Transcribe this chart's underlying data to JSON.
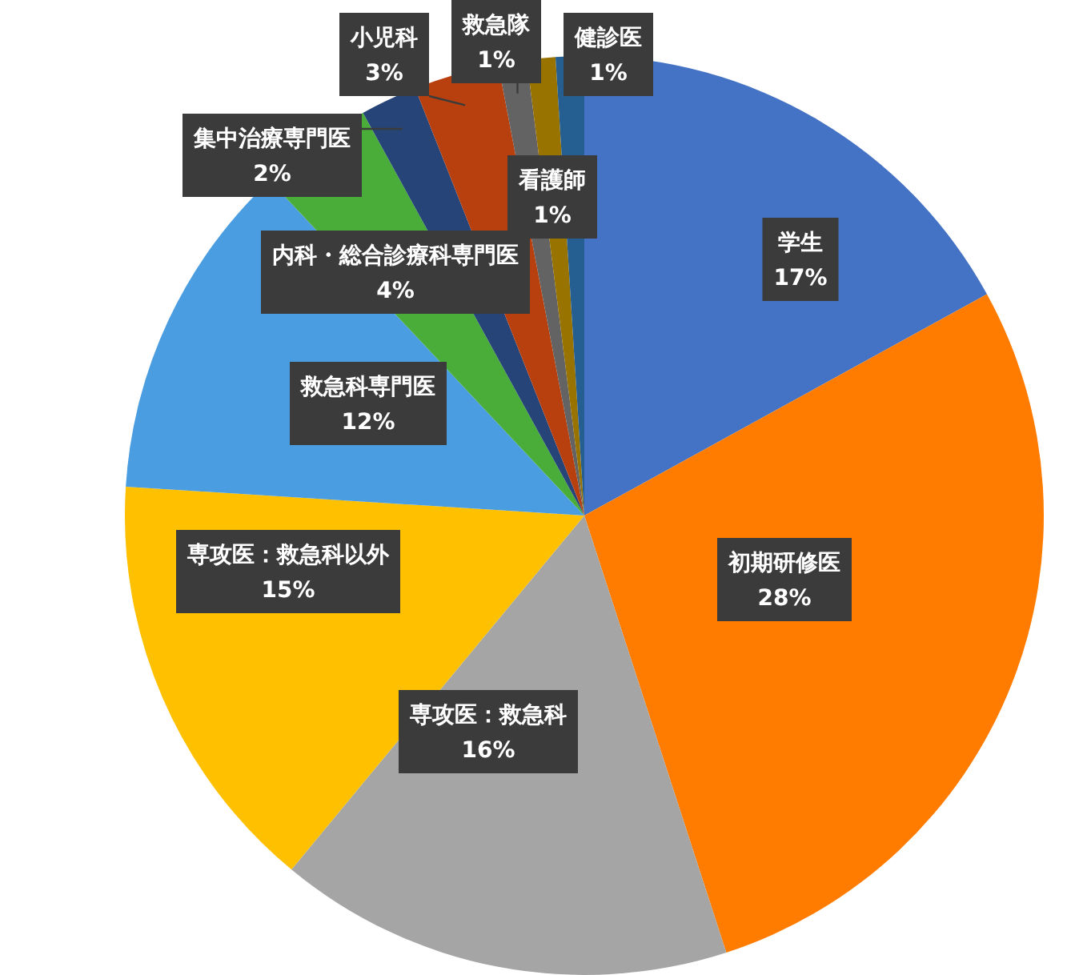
{
  "chart_data": {
    "type": "pie",
    "categories": [
      "学生",
      "初期研修医",
      "専攻医：救急科",
      "専攻医：救急科以外",
      "救急科専門医",
      "内科・総合診療科専門医",
      "集中治療専門医",
      "小児科",
      "救急隊",
      "看護師",
      "健診医"
    ],
    "values": [
      17,
      28,
      16,
      15,
      12,
      4,
      2,
      3,
      1,
      1,
      1
    ],
    "value_labels": [
      "17%",
      "28%",
      "16%",
      "15%",
      "12%",
      "4%",
      "2%",
      "3%",
      "1%",
      "1%",
      "1%"
    ],
    "colors": [
      "#4472c4",
      "#ff7c00",
      "#a5a5a5",
      "#ffc000",
      "#4a9de0",
      "#4aad3a",
      "#264478",
      "#b8400e",
      "#636363",
      "#997300",
      "#255e91"
    ]
  }
}
